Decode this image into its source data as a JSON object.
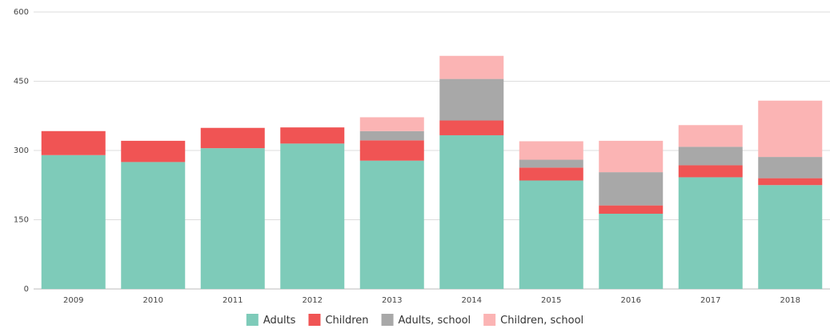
{
  "chart_data": {
    "type": "bar",
    "stacked": true,
    "categories": [
      "2009",
      "2010",
      "2011",
      "2012",
      "2013",
      "2014",
      "2015",
      "2016",
      "2017",
      "2018"
    ],
    "series": [
      {
        "name": "Adults",
        "color": "#7ecbb9",
        "values": [
          290,
          275,
          305,
          315,
          278,
          333,
          235,
          163,
          242,
          225
        ]
      },
      {
        "name": "Children",
        "color": "#f05454",
        "values": [
          52,
          46,
          44,
          35,
          44,
          32,
          28,
          18,
          26,
          15
        ]
      },
      {
        "name": "Adults, school",
        "color": "#a8a8a8",
        "values": [
          0,
          0,
          0,
          0,
          20,
          90,
          17,
          72,
          40,
          46
        ]
      },
      {
        "name": "Children, school",
        "color": "#fbb4b4",
        "values": [
          0,
          0,
          0,
          0,
          30,
          50,
          40,
          68,
          47,
          122
        ]
      }
    ],
    "ylim": [
      0,
      600
    ],
    "yticks": [
      0,
      150,
      300,
      450,
      600
    ],
    "grid": true,
    "legend_position": "bottom"
  }
}
